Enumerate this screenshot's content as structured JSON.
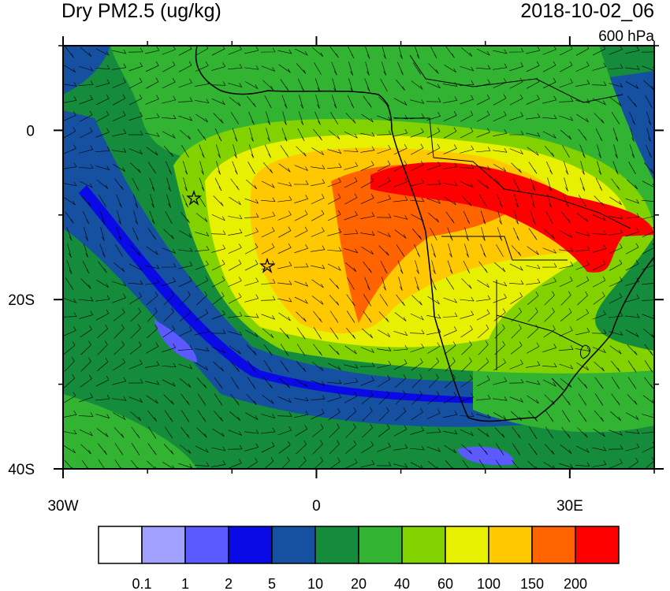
{
  "header": {
    "title": "Dry PM2.5 (ug/kg)",
    "datetime": "2018-10-02_06",
    "level": "600 hPa"
  },
  "map": {
    "xlim": [
      -30,
      40
    ],
    "ylim": [
      -40,
      10
    ],
    "xticks": [
      {
        "value": -30,
        "label": "30W"
      },
      0,
      {
        "value": 30,
        "label": "30E"
      }
    ],
    "yticks": [
      0,
      {
        "value": -20,
        "label": "20S"
      },
      {
        "value": -40,
        "label": "40S"
      }
    ]
  },
  "colorbar": {
    "levels": [
      0.1,
      1,
      2,
      5,
      10,
      20,
      40,
      60,
      100,
      150,
      200
    ],
    "colors": [
      "#ffffff",
      "#a0a0ff",
      "#5a5aff",
      "#0a0ae6",
      "#1650a0",
      "#148c3c",
      "#32b432",
      "#82d200",
      "#e6f000",
      "#ffc800",
      "#ff6400",
      "#ff0000"
    ]
  }
}
